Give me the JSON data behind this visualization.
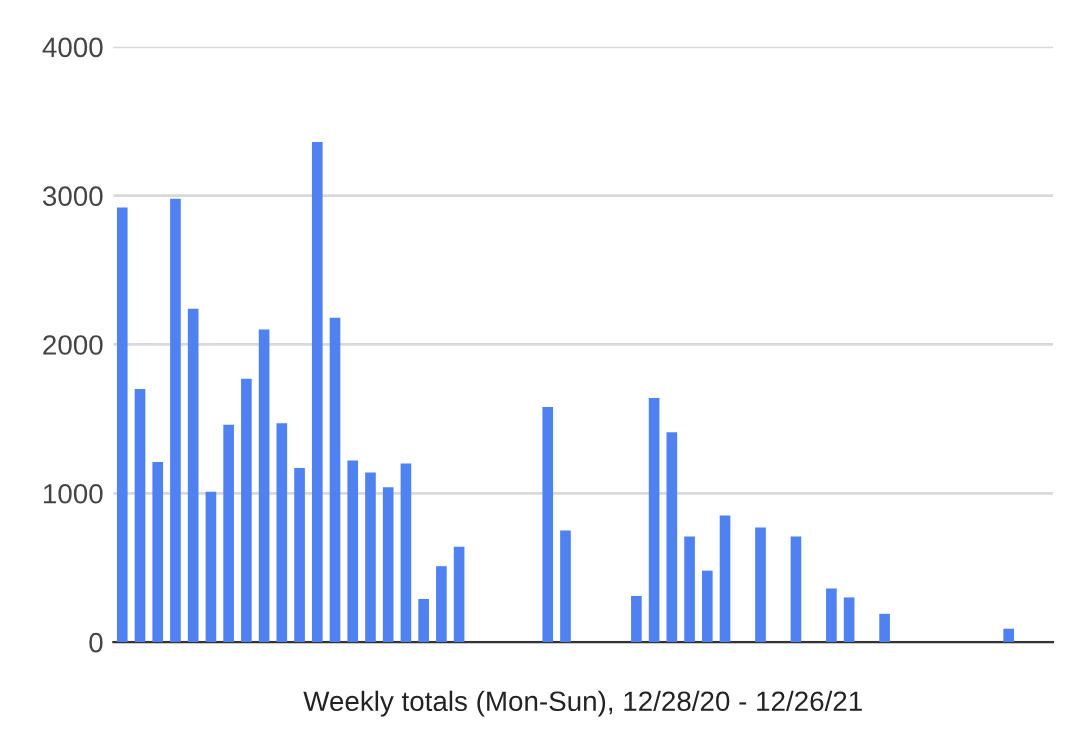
{
  "chart_data": {
    "type": "bar",
    "xlabel": "Weekly totals (Mon-Sun), 12/28/20 - 12/26/21",
    "categories": [
      null,
      null,
      null,
      null,
      null,
      null,
      null,
      null,
      null,
      null,
      null,
      null,
      null,
      null,
      null,
      null,
      null,
      null,
      null,
      null,
      null,
      null,
      null,
      null,
      null,
      null,
      null,
      null,
      null,
      null,
      null,
      null,
      null,
      null,
      null,
      null,
      null,
      null,
      null,
      null,
      null,
      null,
      null,
      null,
      null,
      null,
      null,
      null,
      null,
      null,
      null,
      null,
      null
    ],
    "values": [
      2920,
      1700,
      1210,
      2980,
      2240,
      1010,
      1460,
      1770,
      2100,
      1470,
      1170,
      3360,
      2180,
      1220,
      1140,
      1040,
      1200,
      290,
      510,
      640,
      null,
      null,
      null,
      null,
      1580,
      750,
      null,
      null,
      null,
      310,
      1640,
      1410,
      710,
      480,
      850,
      null,
      770,
      null,
      710,
      null,
      360,
      300,
      null,
      190,
      null,
      null,
      null,
      null,
      null,
      null,
      90,
      null,
      null
    ],
    "color": "#4f81f0",
    "ylim": [
      0,
      4000
    ],
    "yticks": [
      0,
      1000,
      2000,
      3000,
      4000
    ],
    "grid": "y",
    "tick_labels": "y"
  }
}
